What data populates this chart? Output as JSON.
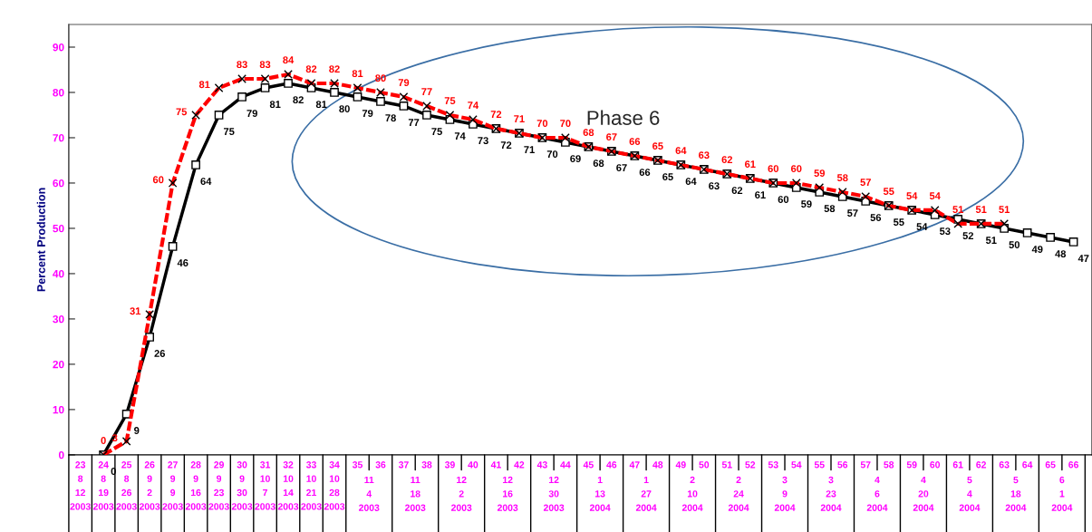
{
  "chart_data": {
    "type": "line",
    "ylabel": "Percent Production",
    "categories": [
      "23\n8\n12\n2003",
      "24\n8\n19\n2003",
      "25\n8\n26\n2003",
      "26\n9\n2\n2003",
      "27\n9\n9\n2003",
      "28\n9\n16\n2003",
      "29\n9\n23\n2003",
      "30\n9\n30\n2003",
      "31\n10\n7\n2003",
      "32\n10\n14\n2003",
      "33\n10\n21\n2003",
      "34\n10\n28\n2003",
      "35",
      "36",
      "37",
      "38",
      "39",
      "40",
      "41",
      "42",
      "43",
      "44",
      "45",
      "46",
      "47",
      "48",
      "49",
      "50",
      "51",
      "52",
      "53",
      "54",
      "55",
      "56",
      "57",
      "58",
      "59",
      "60",
      "61",
      "62",
      "63",
      "64",
      "65",
      "66"
    ],
    "series": [
      {
        "color": "#ff0000",
        "marker": "cross",
        "line_style": "dashed",
        "values": [
          null,
          0,
          3,
          31,
          60,
          75,
          81,
          83,
          83,
          84,
          82,
          82,
          81,
          80,
          79,
          77,
          75,
          74,
          72,
          71,
          70,
          70,
          68,
          67,
          66,
          65,
          64,
          63,
          62,
          61,
          60,
          60,
          59,
          58,
          57,
          55,
          54,
          54,
          51,
          51,
          51,
          null,
          null,
          null
        ]
      },
      {
        "color": "#000000",
        "marker": "square",
        "line_style": "solid",
        "values": [
          null,
          0,
          9,
          26,
          46,
          64,
          75,
          79,
          81,
          82,
          81,
          80,
          79,
          78,
          77,
          75,
          74,
          73,
          72,
          71,
          70,
          69,
          68,
          67,
          66,
          65,
          64,
          63,
          62,
          61,
          60,
          59,
          58,
          57,
          56,
          55,
          54,
          53,
          52,
          51,
          50,
          49,
          48,
          47
        ]
      }
    ],
    "ylim": [
      0,
      95
    ],
    "yticks": [
      0,
      10,
      20,
      30,
      40,
      50,
      60,
      70,
      80,
      90
    ],
    "data_labels": true,
    "grid": false,
    "legend": false,
    "annotations": [
      "Phase 6",
      "11\n4\n2003",
      "11\n18\n2003",
      "12\n2\n2003",
      "12\n16\n2003",
      "12\n30\n2003",
      "1\n13\n2004",
      "1\n27\n2004",
      "2\n10\n2004",
      "2\n24\n2004",
      "3\n9\n2004",
      "3\n23\n2004",
      "4\n6\n2004",
      "4\n20\n2004",
      "5\n4\n2004",
      "5\n18\n2004",
      "6\n1\n2004"
    ]
  }
}
